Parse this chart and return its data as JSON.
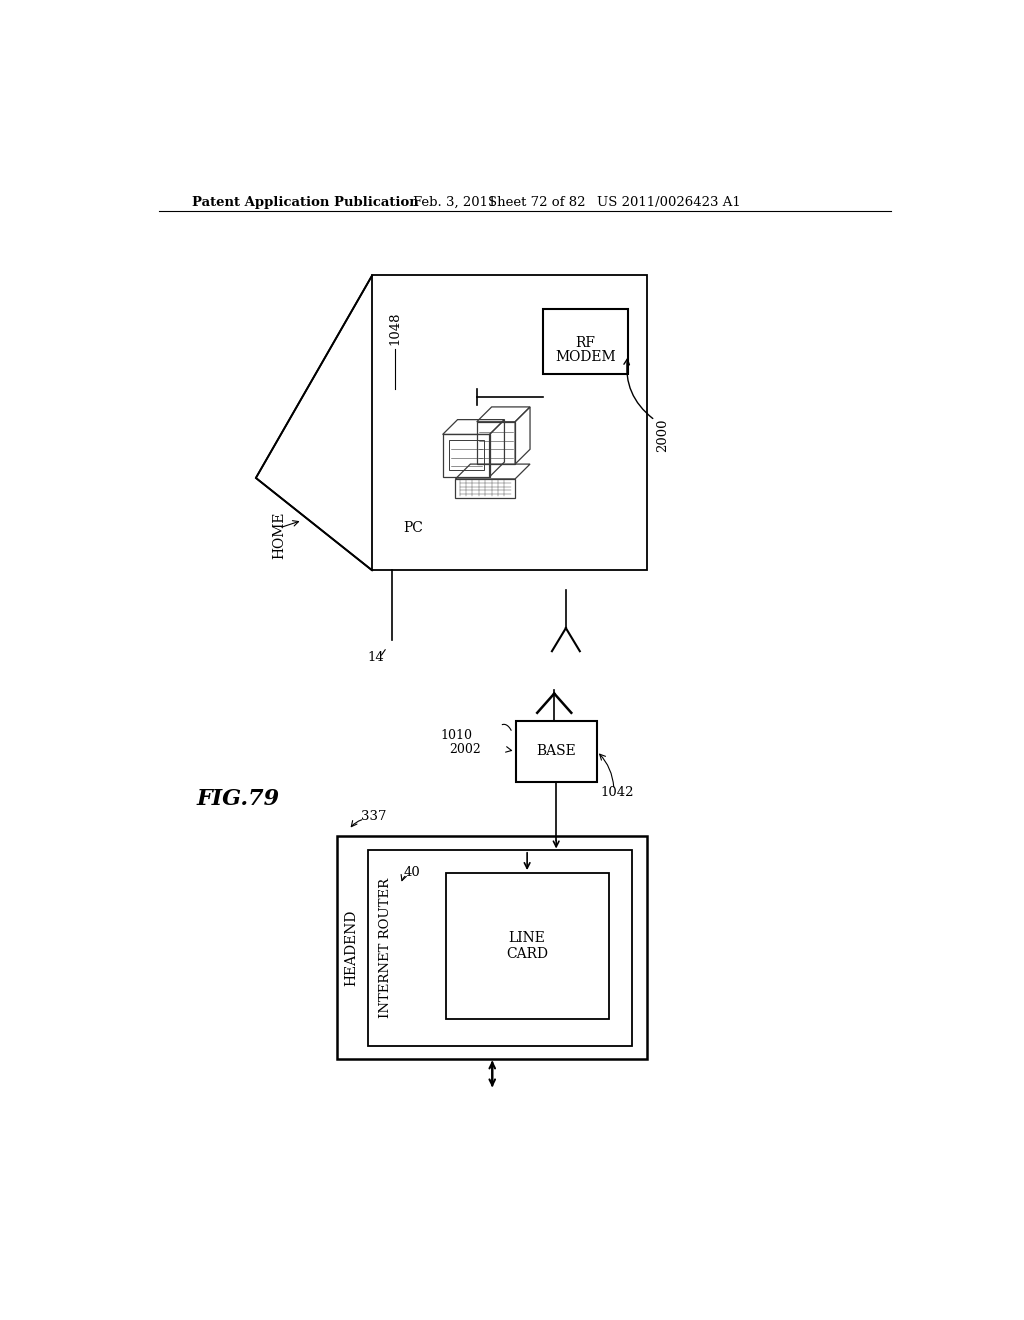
{
  "bg_color": "#ffffff",
  "header_text": "Patent Application Publication",
  "header_date": "Feb. 3, 2011",
  "header_sheet": "Sheet 72 of 82",
  "header_patent": "US 2011/0026423 A1",
  "fig_label": "FIG.79"
}
